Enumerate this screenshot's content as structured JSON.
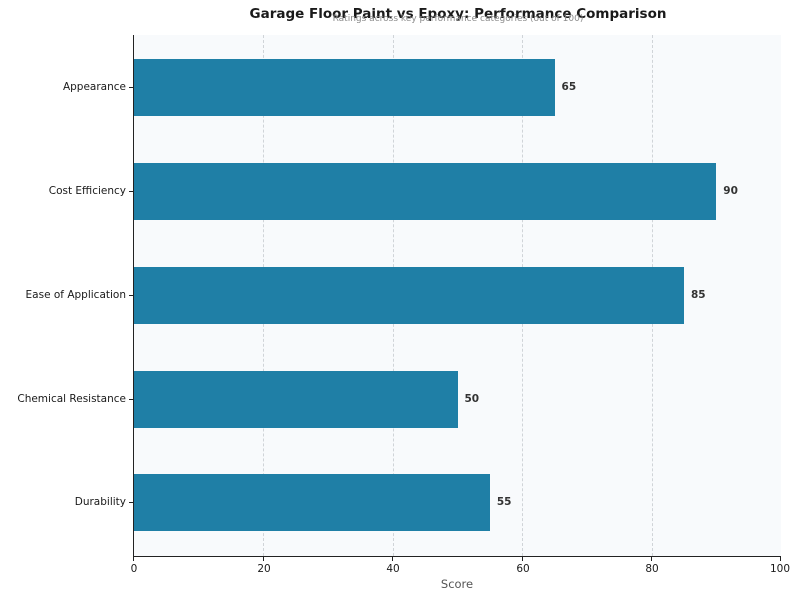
{
  "chart_data": {
    "type": "bar",
    "orientation": "horizontal",
    "title": "Garage Floor Paint vs Epoxy: Performance Comparison",
    "subtitle": "Ratings across key performance categories (out of 100)",
    "xlabel": "Score",
    "ylabel": "",
    "xlim": [
      0,
      100
    ],
    "xticks": [
      "0",
      "20",
      "40",
      "60",
      "80",
      "100"
    ],
    "categories": [
      "Appearance",
      "Cost Efficiency",
      "Ease of Application",
      "Chemical Resistance",
      "Durability"
    ],
    "values": [
      65,
      90,
      85,
      50,
      55
    ],
    "value_labels": [
      "65",
      "90",
      "85",
      "50",
      "55"
    ],
    "bar_color": "#1f7fa6",
    "background_color": "#f8fafc",
    "grid": "vertical dashed",
    "legend": "none"
  }
}
